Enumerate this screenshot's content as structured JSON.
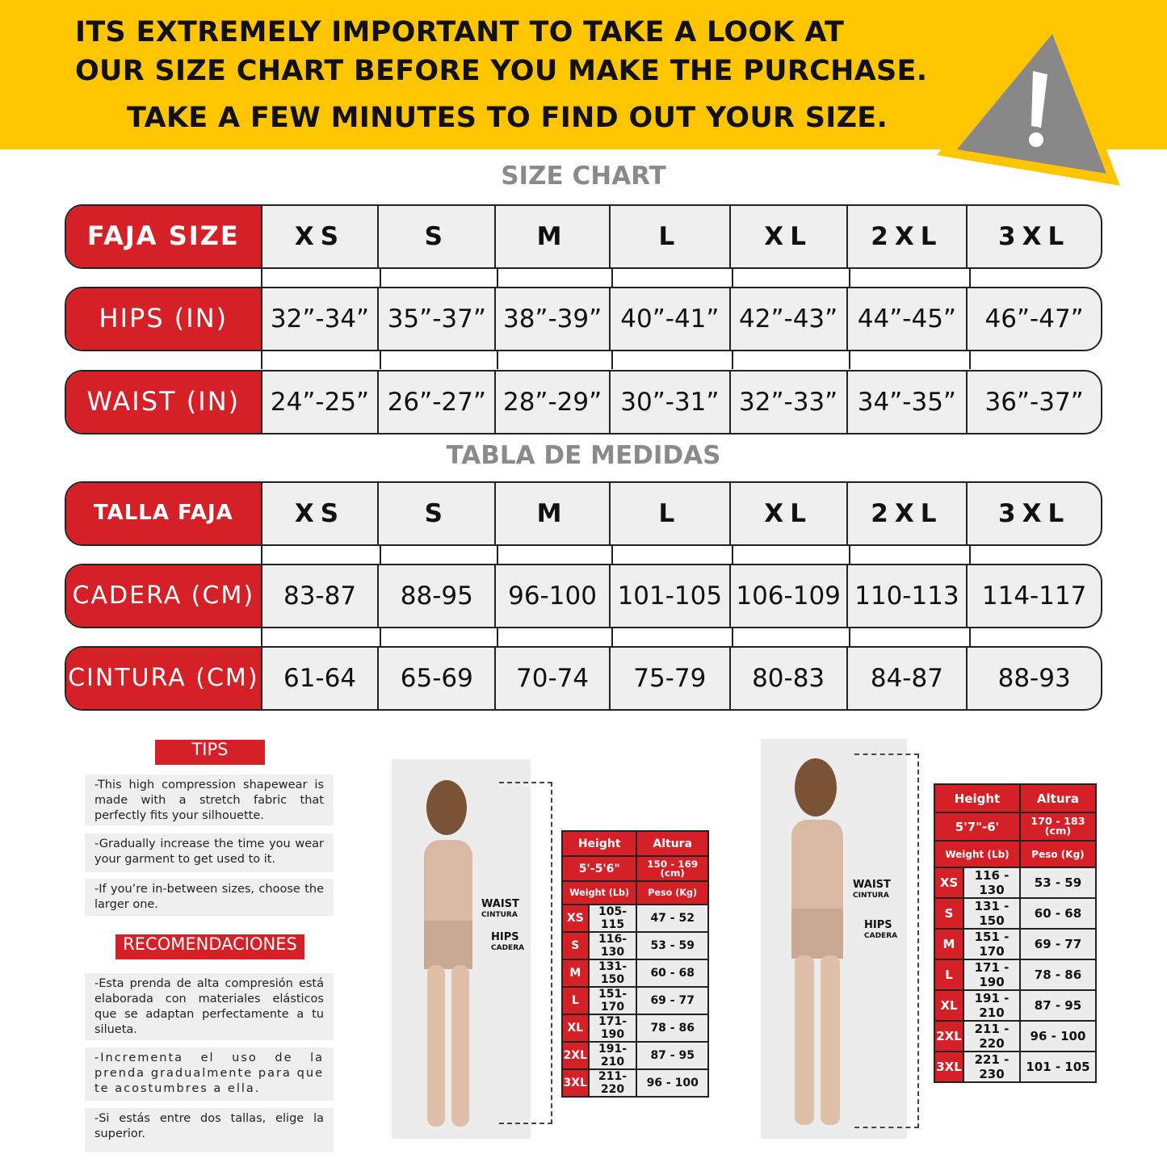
{
  "banner": {
    "line1": "ITS EXTREMELY IMPORTANT TO TAKE A LOOK AT",
    "line2": "OUR SIZE CHART BEFORE YOU MAKE THE PURCHASE.",
    "line3": "TAKE A FEW MINUTES TO FIND OUT YOUR SIZE.",
    "icon": "warning-triangle-icon",
    "color": "#FFC600"
  },
  "size_chart": {
    "title": "SIZE CHART",
    "rows": [
      {
        "label": "FAJA SIZE",
        "values": [
          "XS",
          "S",
          "M",
          "L",
          "XL",
          "2XL",
          "3XL"
        ]
      },
      {
        "label": "HIPS (IN)",
        "values": [
          "32”-34”",
          "35”-37”",
          "38”-39”",
          "40”-41”",
          "42”-43”",
          "44”-45”",
          "46”-47”"
        ]
      },
      {
        "label": "WAIST (IN)",
        "values": [
          "24”-25”",
          "26”-27”",
          "28”-29”",
          "30”-31”",
          "32”-33”",
          "34”-35”",
          "36”-37”"
        ]
      }
    ]
  },
  "tabla": {
    "title": "TABLA DE MEDIDAS",
    "rows": [
      {
        "label": "TALLA FAJA",
        "values": [
          "XS",
          "S",
          "M",
          "L",
          "XL",
          "2XL",
          "3XL"
        ]
      },
      {
        "label": "CADERA (CM)",
        "values": [
          "83-87",
          "88-95",
          "96-100",
          "101-105",
          "106-109",
          "110-113",
          "114-117"
        ]
      },
      {
        "label": "CINTURA (CM)",
        "values": [
          "61-64",
          "65-69",
          "70-74",
          "75-79",
          "80-83",
          "84-87",
          "88-93"
        ]
      }
    ]
  },
  "tips": {
    "title": "TIPS",
    "items": [
      "-This high compression shapewear is made with a stretch fabric that perfectly fits your silhouette.",
      "-Gradually increase the time you wear your garment to get used to it.",
      "-If you’re in-between sizes, choose the larger one."
    ]
  },
  "recomendaciones": {
    "title": "RECOMENDACIONES",
    "items": [
      "-Esta prenda de alta compresión está elaborada con materiales elásticos que se adaptan perfectamente a tu silueta.",
      "-Incrementa el uso de la prenda gradualmente para que te acostumbres a ella.",
      "-Si estás entre dos tallas, elige la superior."
    ]
  },
  "figure_labels": {
    "waist": "WAIST",
    "cintura": "CINTURA",
    "hips": "HIPS",
    "cadera": "CADERA"
  },
  "table_small": {
    "height": "Height",
    "altura": "Altura",
    "height_value": "5'-5'6\"",
    "altura_value": "150 - 169 (cm)",
    "weight": "Weight (Lb)",
    "peso": "Peso (Kg)",
    "rows": [
      [
        "XS",
        "105-115",
        "47 - 52"
      ],
      [
        "S",
        "116-130",
        "53 - 59"
      ],
      [
        "M",
        "131-150",
        "60 - 68"
      ],
      [
        "L",
        "151-170",
        "69 - 77"
      ],
      [
        "XL",
        "171-190",
        "78 - 86"
      ],
      [
        "2XL",
        "191-210",
        "87 - 95"
      ],
      [
        "3XL",
        "211-220",
        "96 - 100"
      ]
    ]
  },
  "table_tall": {
    "height": "Height",
    "altura": "Altura",
    "height_value": "5'7\"-6'",
    "altura_value": "170 - 183 (cm)",
    "weight": "Weight (Lb)",
    "peso": "Peso (Kg)",
    "rows": [
      [
        "XS",
        "116 - 130",
        "53 - 59"
      ],
      [
        "S",
        "131 - 150",
        "60 - 68"
      ],
      [
        "M",
        "151 - 170",
        "69 - 77"
      ],
      [
        "L",
        "171 - 190",
        "78 - 86"
      ],
      [
        "XL",
        "191 - 210",
        "87 - 95"
      ],
      [
        "2XL",
        "211 - 220",
        "96 - 100"
      ],
      [
        "3XL",
        "221 - 230",
        "101 - 105"
      ]
    ]
  }
}
